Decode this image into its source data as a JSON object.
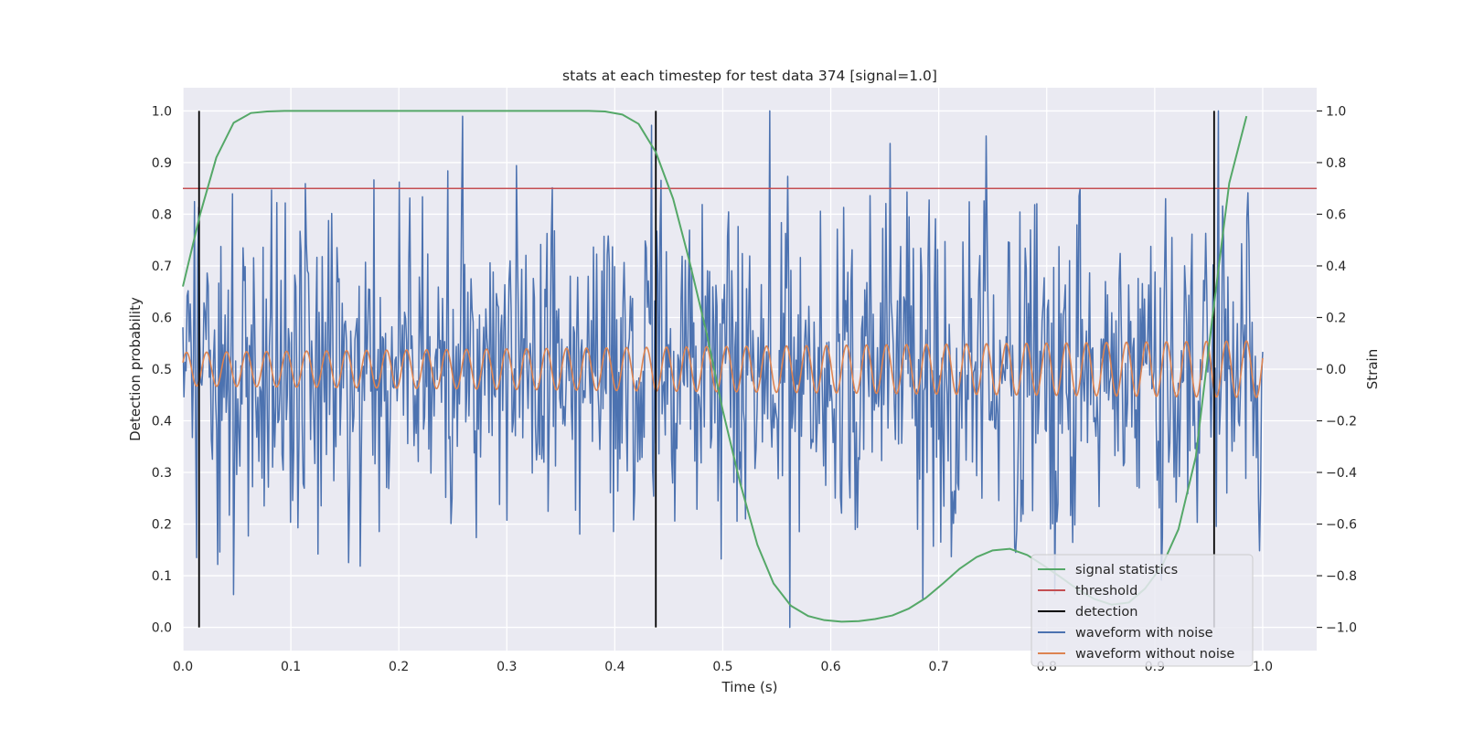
{
  "chart_data": {
    "type": "line",
    "title": "stats at each timestep for test data 374 [signal=1.0]",
    "xlabel": "Time (s)",
    "ylabel_left": "Detection probability",
    "ylabel_right": "Strain",
    "xlim": [
      0.0,
      1.05
    ],
    "ylim_left": [
      -0.045,
      1.045
    ],
    "ylim_right": [
      -1.09,
      1.09
    ],
    "x_ticks": [
      "0.0",
      "0.1",
      "0.2",
      "0.3",
      "0.4",
      "0.5",
      "0.6",
      "0.7",
      "0.8",
      "0.9",
      "1.0"
    ],
    "y_ticks_left": [
      "0.0",
      "0.1",
      "0.2",
      "0.3",
      "0.4",
      "0.5",
      "0.6",
      "0.7",
      "0.8",
      "0.9",
      "1.0"
    ],
    "y_ticks_right": [
      "−1.0",
      "−0.8",
      "−0.6",
      "−0.4",
      "−0.2",
      "0.0",
      "0.2",
      "0.4",
      "0.6",
      "0.8",
      "1.0"
    ],
    "grid": true,
    "legend_position": "lower-right",
    "colors": {
      "background": "#eaeaf2",
      "grid": "#ffffff",
      "signal_statistics": "#55a868",
      "threshold": "#c44e52",
      "detection": "#000000",
      "waveform_with_noise": "#4c72b0",
      "waveform_without_noise": "#dd8452"
    },
    "legend": [
      {
        "label": "signal statistics",
        "key": "signal_statistics"
      },
      {
        "label": "threshold",
        "key": "threshold"
      },
      {
        "label": "detection",
        "key": "detection"
      },
      {
        "label": "waveform with noise",
        "key": "waveform_with_noise"
      },
      {
        "label": "waveform without noise",
        "key": "waveform_without_noise"
      }
    ],
    "signal_statistics": {
      "x": [
        0.0,
        0.016,
        0.031,
        0.047,
        0.063,
        0.078,
        0.094,
        0.11,
        0.125,
        0.141,
        0.157,
        0.172,
        0.188,
        0.204,
        0.219,
        0.235,
        0.25,
        0.266,
        0.282,
        0.297,
        0.313,
        0.329,
        0.344,
        0.36,
        0.376,
        0.391,
        0.407,
        0.422,
        0.438,
        0.454,
        0.469,
        0.485,
        0.5,
        0.516,
        0.532,
        0.547,
        0.563,
        0.579,
        0.594,
        0.61,
        0.626,
        0.641,
        0.657,
        0.672,
        0.688,
        0.704,
        0.719,
        0.735,
        0.75,
        0.766,
        0.782,
        0.797,
        0.813,
        0.829,
        0.844,
        0.86,
        0.876,
        0.891,
        0.907,
        0.922,
        0.938,
        0.954,
        0.969,
        0.985
      ],
      "y": [
        0.66,
        0.8,
        0.91,
        0.977,
        0.996,
        0.999,
        1.0,
        1.0,
        1.0,
        1.0,
        1.0,
        1.0,
        1.0,
        1.0,
        1.0,
        1.0,
        1.0,
        1.0,
        1.0,
        1.0,
        1.0,
        1.0,
        1.0,
        1.0,
        1.0,
        0.999,
        0.993,
        0.975,
        0.92,
        0.83,
        0.71,
        0.57,
        0.42,
        0.28,
        0.16,
        0.085,
        0.042,
        0.022,
        0.014,
        0.011,
        0.012,
        0.016,
        0.023,
        0.036,
        0.057,
        0.085,
        0.113,
        0.136,
        0.149,
        0.152,
        0.14,
        0.12,
        0.097,
        0.073,
        0.055,
        0.044,
        0.048,
        0.075,
        0.12,
        0.19,
        0.33,
        0.61,
        0.86,
        0.99
      ]
    },
    "threshold": {
      "y": 0.85
    },
    "detections": {
      "x": [
        0.015,
        0.438,
        0.955
      ]
    },
    "waveform_without_noise": {
      "x_start": 0.0,
      "x_end": 1.0,
      "amplitude_start": 0.065,
      "amplitude_end": 0.11,
      "cycles": 54
    },
    "waveform_with_noise": {
      "x_start": 0.0,
      "x_end": 1.0,
      "samples": 1024,
      "noise_std": 0.33,
      "strain_min": -1.0,
      "strain_max": 1.0
    }
  }
}
